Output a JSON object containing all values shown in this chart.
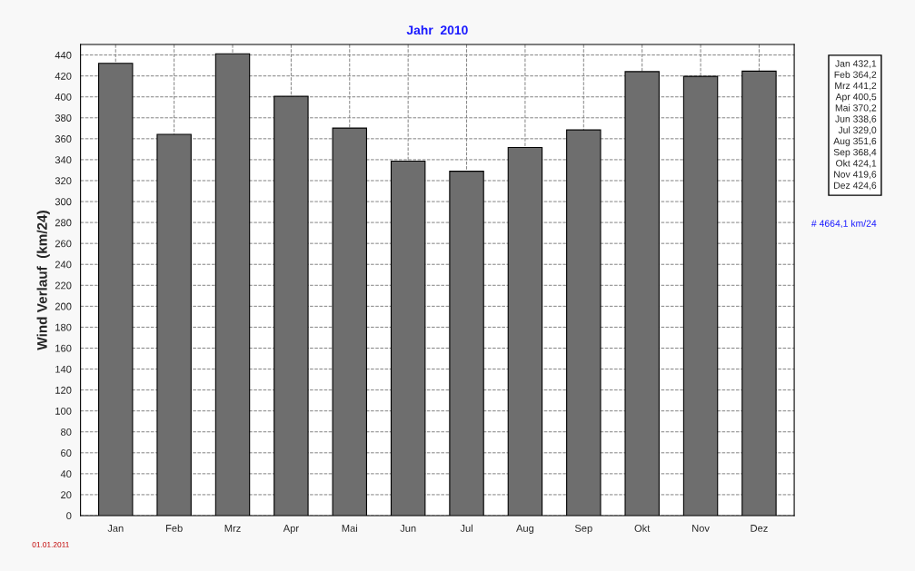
{
  "chart_data": {
    "type": "bar",
    "title": "Jahr  2010",
    "ylabel": "Wind Verlauf  (km/24)",
    "categories": [
      "Jan",
      "Feb",
      "Mrz",
      "Apr",
      "Mai",
      "Jun",
      "Jul",
      "Aug",
      "Sep",
      "Okt",
      "Nov",
      "Dez"
    ],
    "values": [
      432.1,
      364.2,
      441.2,
      400.5,
      370.2,
      338.6,
      329.0,
      351.6,
      368.4,
      424.1,
      419.6,
      424.6
    ],
    "value_labels": [
      "432,1",
      "364,2",
      "441,2",
      "400,5",
      "370,2",
      "338,6",
      "329,0",
      "351,6",
      "368,4",
      "424,1",
      "419,6",
      "424,6"
    ],
    "color": "#6e6e6e",
    "ylim": [
      0,
      450
    ],
    "yticks": [
      0,
      20,
      40,
      60,
      80,
      100,
      120,
      140,
      160,
      180,
      200,
      220,
      240,
      260,
      280,
      300,
      320,
      340,
      360,
      380,
      400,
      420,
      440
    ],
    "grid": true,
    "annotations": [
      "# 4664,1 km/24",
      "01.01.2011"
    ]
  }
}
